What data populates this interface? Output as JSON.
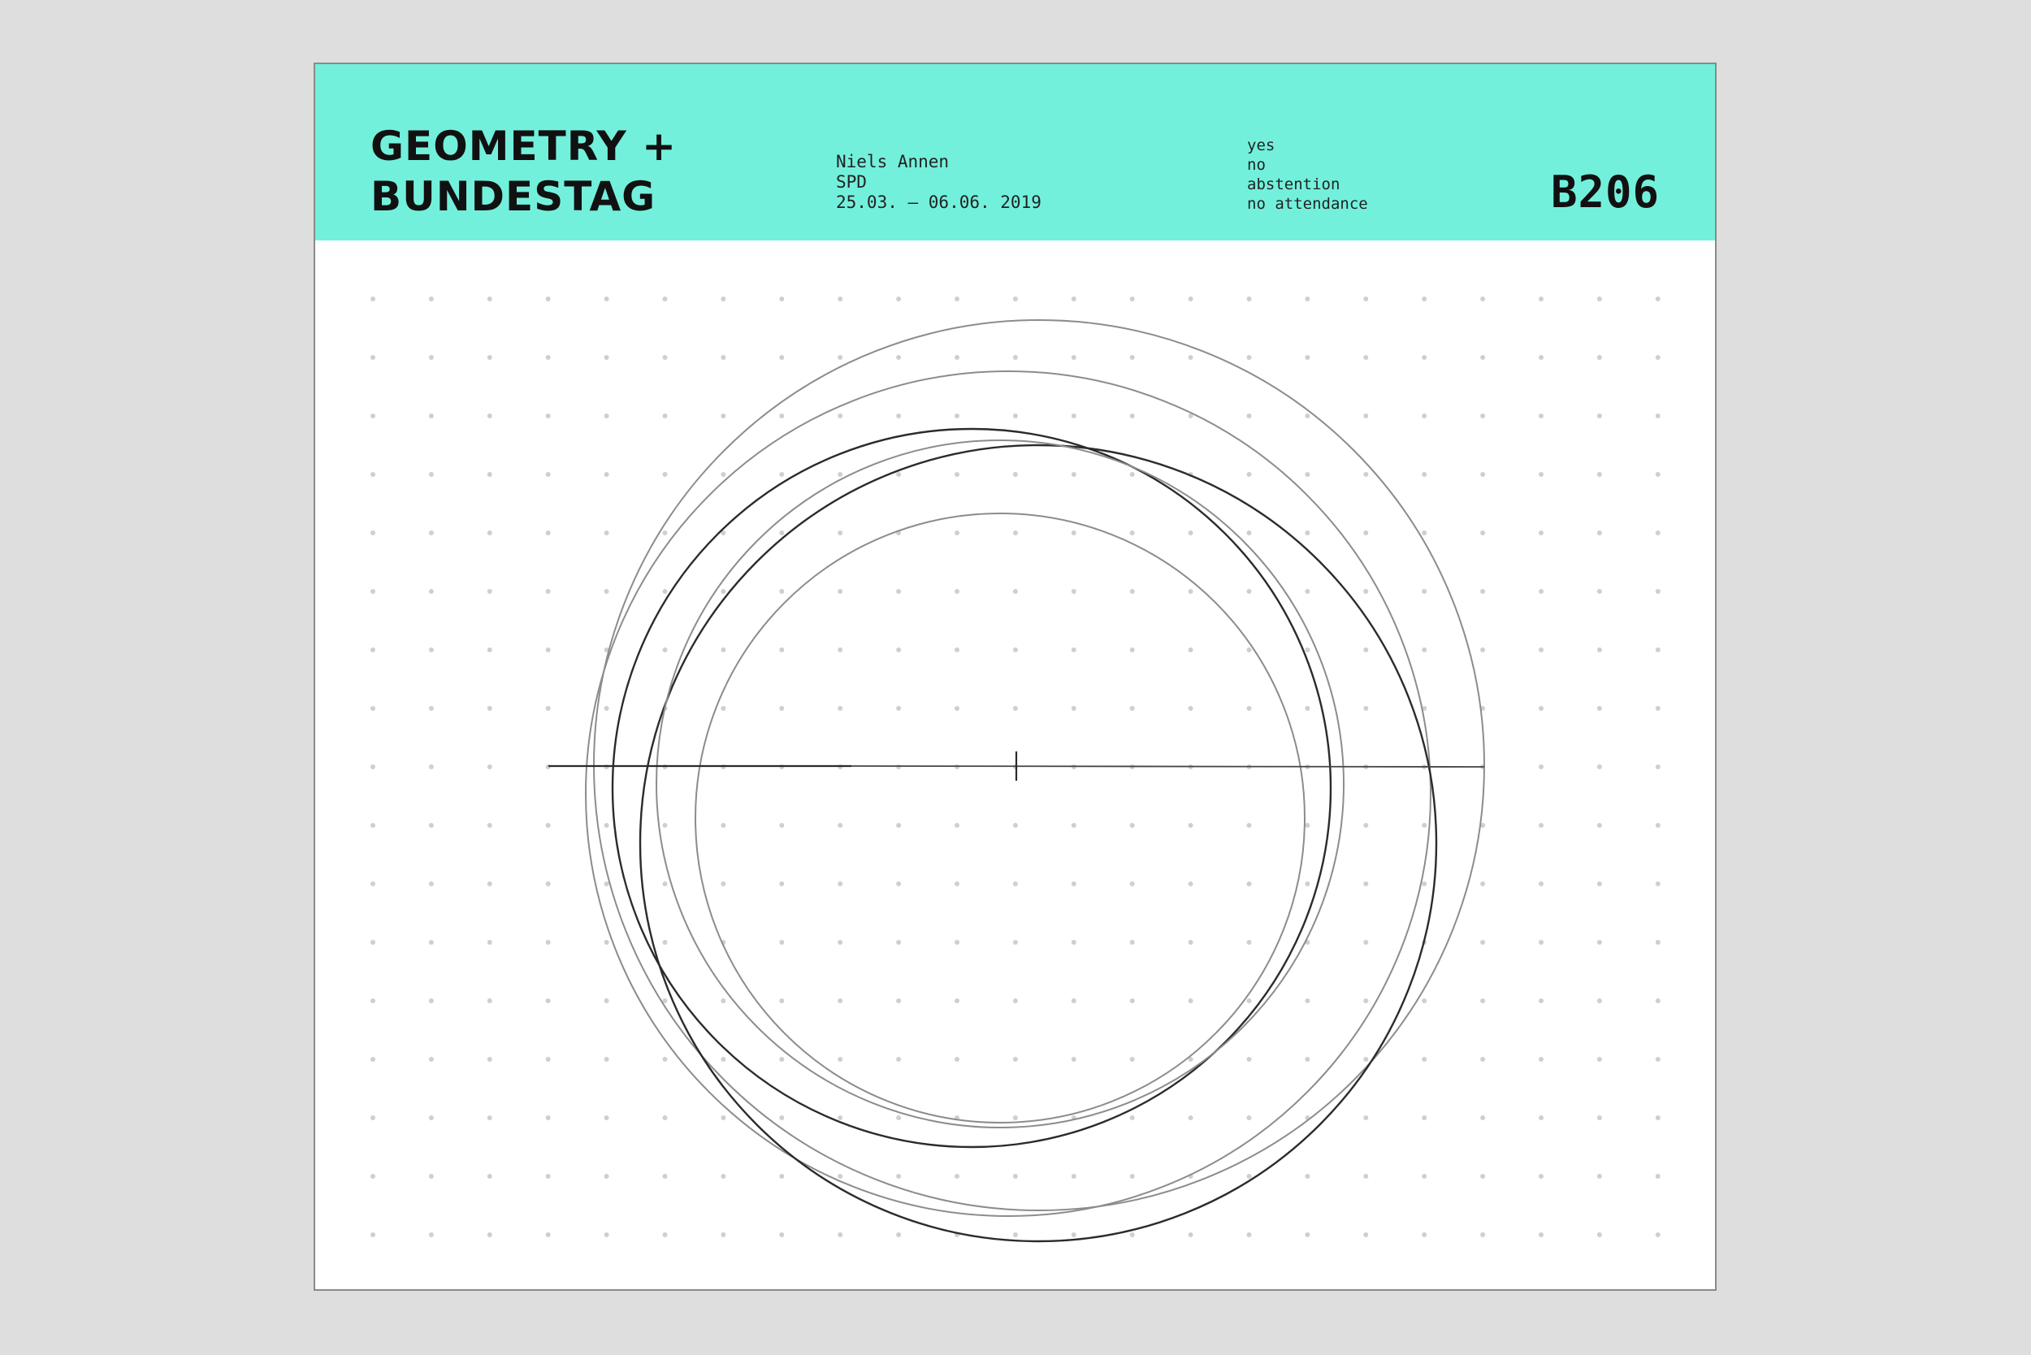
{
  "poster": {
    "title_line1": "GEOMETRY +",
    "title_line2": "BUNDESTAG",
    "member": "Niels Annen",
    "party": "SPD",
    "date_range": "25.03. – 06.06. 2019",
    "legend": [
      "yes",
      "no",
      "abstention",
      "no attendance"
    ],
    "code": "B206"
  },
  "colors": {
    "header": "#73f0dc",
    "background": "#dedede",
    "poster": "#ffffff",
    "dots": "#cfcfcf",
    "dark_stroke": "#2b2b2b",
    "light_stroke": "#8c8c8c"
  }
}
